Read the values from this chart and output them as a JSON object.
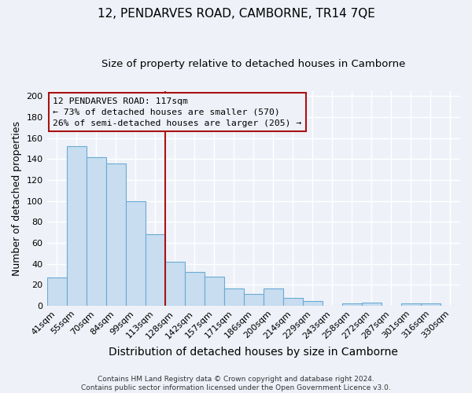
{
  "title": "12, PENDARVES ROAD, CAMBORNE, TR14 7QE",
  "subtitle": "Size of property relative to detached houses in Camborne",
  "xlabel": "Distribution of detached houses by size in Camborne",
  "ylabel": "Number of detached properties",
  "categories": [
    "41sqm",
    "55sqm",
    "70sqm",
    "84sqm",
    "99sqm",
    "113sqm",
    "128sqm",
    "142sqm",
    "157sqm",
    "171sqm",
    "186sqm",
    "200sqm",
    "214sqm",
    "229sqm",
    "243sqm",
    "258sqm",
    "272sqm",
    "287sqm",
    "301sqm",
    "316sqm",
    "330sqm"
  ],
  "values": [
    27,
    152,
    142,
    136,
    100,
    68,
    42,
    32,
    28,
    16,
    11,
    16,
    7,
    4,
    0,
    2,
    3,
    0,
    2,
    2,
    0
  ],
  "bar_color": "#c8ddf0",
  "bar_edge_color": "#6aaad4",
  "highlight_line_index": 5,
  "highlight_line_color": "#aa1111",
  "annotation_text_line1": "12 PENDARVES ROAD: 117sqm",
  "annotation_text_line2": "← 73% of detached houses are smaller (570)",
  "annotation_text_line3": "26% of semi-detached houses are larger (205) →",
  "annotation_box_edge_color": "#aa1111",
  "footer_text": "Contains HM Land Registry data © Crown copyright and database right 2024.\nContains public sector information licensed under the Open Government Licence v3.0.",
  "ylim": [
    0,
    205
  ],
  "yticks": [
    0,
    20,
    40,
    60,
    80,
    100,
    120,
    140,
    160,
    180,
    200
  ],
  "background_color": "#eef2f8",
  "grid_color": "#ffffff",
  "title_fontsize": 11,
  "subtitle_fontsize": 9.5,
  "xlabel_fontsize": 10,
  "ylabel_fontsize": 9,
  "tick_fontsize": 8,
  "footer_fontsize": 6.5
}
